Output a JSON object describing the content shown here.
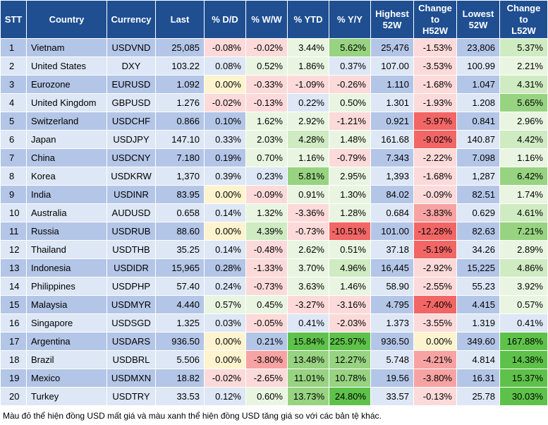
{
  "chart_data": {
    "type": "table",
    "columns": [
      "STT",
      "Country",
      "Currency",
      "Last",
      "% D/D",
      "% W/W",
      "% YTD",
      "% Y/Y",
      "Highest 52W",
      "Change to H52W",
      "Lowest 52W",
      "Change to L52W"
    ],
    "column_keys": [
      "stt",
      "country",
      "currency",
      "last",
      "dd",
      "ww",
      "ytd",
      "yy",
      "h52",
      "ch52",
      "l52",
      "cl52"
    ],
    "rows": [
      {
        "stt": "1",
        "country": "Vietnam",
        "currency": "USDVND",
        "last": "25,085",
        "dd": "-0.08%",
        "ww": "-0.02%",
        "ytd": "3.44%",
        "yy": "5.62%",
        "h52": "25,476",
        "ch52": "-1.53%",
        "l52": "23,806",
        "cl52": "5.37%"
      },
      {
        "stt": "2",
        "country": "United States",
        "currency": "DXY",
        "last": "103.22",
        "dd": "0.08%",
        "ww": "0.52%",
        "ytd": "1.86%",
        "yy": "0.37%",
        "h52": "107.00",
        "ch52": "-3.53%",
        "l52": "100.99",
        "cl52": "2.21%"
      },
      {
        "stt": "3",
        "country": "Eurozone",
        "currency": "EURUSD",
        "last": "1.092",
        "dd": "0.00%",
        "ww": "-0.33%",
        "ytd": "-1.09%",
        "yy": "-0.26%",
        "h52": "1.110",
        "ch52": "-1.68%",
        "l52": "1.047",
        "cl52": "4.31%"
      },
      {
        "stt": "4",
        "country": "United Kingdom",
        "currency": "GBPUSD",
        "last": "1.276",
        "dd": "-0.02%",
        "ww": "-0.13%",
        "ytd": "0.22%",
        "yy": "0.50%",
        "h52": "1.301",
        "ch52": "-1.93%",
        "l52": "1.208",
        "cl52": "5.65%"
      },
      {
        "stt": "5",
        "country": "Switzerland",
        "currency": "USDCHF",
        "last": "0.866",
        "dd": "0.10%",
        "ww": "1.62%",
        "ytd": "2.92%",
        "yy": "-1.21%",
        "h52": "0.921",
        "ch52": "-5.97%",
        "l52": "0.841",
        "cl52": "2.96%"
      },
      {
        "stt": "6",
        "country": "Japan",
        "currency": "USDJPY",
        "last": "147.10",
        "dd": "0.33%",
        "ww": "2.03%",
        "ytd": "4.28%",
        "yy": "1.48%",
        "h52": "161.68",
        "ch52": "-9.02%",
        "l52": "140.87",
        "cl52": "4.42%"
      },
      {
        "stt": "7",
        "country": "China",
        "currency": "USDCNY",
        "last": "7.180",
        "dd": "0.19%",
        "ww": "0.70%",
        "ytd": "1.16%",
        "yy": "-0.79%",
        "h52": "7.343",
        "ch52": "-2.22%",
        "l52": "7.098",
        "cl52": "1.16%"
      },
      {
        "stt": "8",
        "country": "Korea",
        "currency": "USDKRW",
        "last": "1,370",
        "dd": "0.39%",
        "ww": "0.23%",
        "ytd": "5.81%",
        "yy": "2.95%",
        "h52": "1,393",
        "ch52": "-1.68%",
        "l52": "1,287",
        "cl52": "6.42%"
      },
      {
        "stt": "9",
        "country": "India",
        "currency": "USDINR",
        "last": "83.95",
        "dd": "0.00%",
        "ww": "-0.09%",
        "ytd": "0.91%",
        "yy": "1.30%",
        "h52": "84.02",
        "ch52": "-0.09%",
        "l52": "82.51",
        "cl52": "1.74%"
      },
      {
        "stt": "10",
        "country": "Australia",
        "currency": "AUDUSD",
        "last": "0.658",
        "dd": "0.14%",
        "ww": "1.32%",
        "ytd": "-3.36%",
        "yy": "1.28%",
        "h52": "0.684",
        "ch52": "-3.83%",
        "l52": "0.629",
        "cl52": "4.61%"
      },
      {
        "stt": "11",
        "country": "Russia",
        "currency": "USDRUB",
        "last": "88.60",
        "dd": "0.00%",
        "ww": "4.39%",
        "ytd": "-0.73%",
        "yy": "-10.51%",
        "h52": "101.00",
        "ch52": "-12.28%",
        "l52": "82.63",
        "cl52": "7.21%"
      },
      {
        "stt": "12",
        "country": "Thailand",
        "currency": "USDTHB",
        "last": "35.25",
        "dd": "0.14%",
        "ww": "-0.48%",
        "ytd": "2.62%",
        "yy": "0.51%",
        "h52": "37.18",
        "ch52": "-5.19%",
        "l52": "34.26",
        "cl52": "2.89%"
      },
      {
        "stt": "13",
        "country": "Indonesia",
        "currency": "USDIDR",
        "last": "15,965",
        "dd": "0.28%",
        "ww": "-1.33%",
        "ytd": "3.70%",
        "yy": "4.96%",
        "h52": "16,445",
        "ch52": "-2.92%",
        "l52": "15,225",
        "cl52": "4.86%"
      },
      {
        "stt": "14",
        "country": "Philippines",
        "currency": "USDPHP",
        "last": "57.40",
        "dd": "0.24%",
        "ww": "-0.73%",
        "ytd": "3.63%",
        "yy": "1.46%",
        "h52": "58.90",
        "ch52": "-2.55%",
        "l52": "55.23",
        "cl52": "3.92%"
      },
      {
        "stt": "15",
        "country": "Malaysia",
        "currency": "USDMYR",
        "last": "4.440",
        "dd": "0.57%",
        "ww": "0.45%",
        "ytd": "-3.27%",
        "yy": "-3.16%",
        "h52": "4.795",
        "ch52": "-7.40%",
        "l52": "4.415",
        "cl52": "0.57%"
      },
      {
        "stt": "16",
        "country": "Singapore",
        "currency": "USDSGD",
        "last": "1.325",
        "dd": "0.03%",
        "ww": "-0.05%",
        "ytd": "0.41%",
        "yy": "-2.03%",
        "h52": "1.373",
        "ch52": "-3.55%",
        "l52": "1.319",
        "cl52": "0.41%"
      },
      {
        "stt": "17",
        "country": "Argentina",
        "currency": "USDARS",
        "last": "936.50",
        "dd": "0.00%",
        "ww": "0.21%",
        "ytd": "15.84%",
        "yy": "225.97%",
        "h52": "936.50",
        "ch52": "0.00%",
        "l52": "349.60",
        "cl52": "167.88%"
      },
      {
        "stt": "18",
        "country": "Brazil",
        "currency": "USDBRL",
        "last": "5.506",
        "dd": "0.00%",
        "ww": "-3.80%",
        "ytd": "13.48%",
        "yy": "12.27%",
        "h52": "5.748",
        "ch52": "-4.21%",
        "l52": "4.814",
        "cl52": "14.38%"
      },
      {
        "stt": "19",
        "country": "Mexico",
        "currency": "USDMXN",
        "last": "18.82",
        "dd": "-0.02%",
        "ww": "-2.65%",
        "ytd": "11.01%",
        "yy": "10.78%",
        "h52": "19.56",
        "ch52": "-3.80%",
        "l52": "16.31",
        "cl52": "15.37%"
      },
      {
        "stt": "20",
        "country": "Turkey",
        "currency": "USDTRY",
        "last": "33.53",
        "dd": "0.12%",
        "ww": "0.60%",
        "ytd": "13.73%",
        "yy": "24.80%",
        "h52": "33.57",
        "ch52": "-0.13%",
        "l52": "25.78",
        "cl52": "30.03%"
      }
    ],
    "colors": {
      "header_bg": "#1f4e91",
      "stripe_dark": "#b4c6e7",
      "stripe_light": "#dde7f5",
      "neg_strong": "#f26666",
      "neg_mid": "#f7a3a3",
      "neg_light": "#fcdada",
      "pos_strong": "#5ec24a",
      "pos_mid": "#97d381",
      "pos_light": "#cfebc2",
      "pos_faint": "#e9f5e1",
      "neutral": "#fdf4cf"
    }
  },
  "footnote": "Màu đỏ thể hiện đồng USD mất giá và màu xanh thể hiện đồng USD tăng giá so với các bản tệ khác."
}
